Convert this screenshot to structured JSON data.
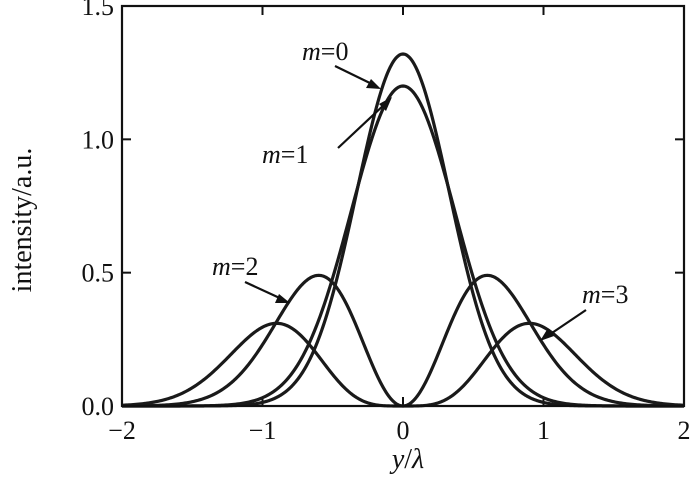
{
  "chart_data": {
    "type": "line",
    "title": "",
    "xlabel_var": "y",
    "xlabel_sep": "/",
    "xlabel_unit": "λ",
    "ylabel": "intensity/a.u.",
    "xlim": [
      -2,
      2
    ],
    "ylim": [
      0,
      1.5
    ],
    "x_ticks": [
      -2,
      -1,
      0,
      1,
      2
    ],
    "x_tick_labels": [
      "−2",
      "−1",
      "0",
      "1",
      "2"
    ],
    "y_ticks": [
      0,
      0.5,
      1.0,
      1.5
    ],
    "y_tick_labels": [
      "0.0",
      "0.5",
      "1.0",
      "1.5"
    ],
    "grid": false,
    "series": [
      {
        "name": "m=0",
        "var": "m",
        "eq": "=",
        "idx": "0",
        "peak_intensity": 1.32
      },
      {
        "name": "m=1",
        "var": "m",
        "eq": "=",
        "idx": "1",
        "peak_intensity": 1.2
      },
      {
        "name": "m=2",
        "var": "m",
        "eq": "=",
        "idx": "2",
        "peak_intensity": 0.49,
        "peak_positions": [
          -0.6,
          0.6
        ]
      },
      {
        "name": "m=3",
        "var": "m",
        "eq": "=",
        "idx": "3",
        "peak_intensity": 0.31,
        "peak_positions": [
          -0.9,
          0.9
        ]
      }
    ]
  }
}
